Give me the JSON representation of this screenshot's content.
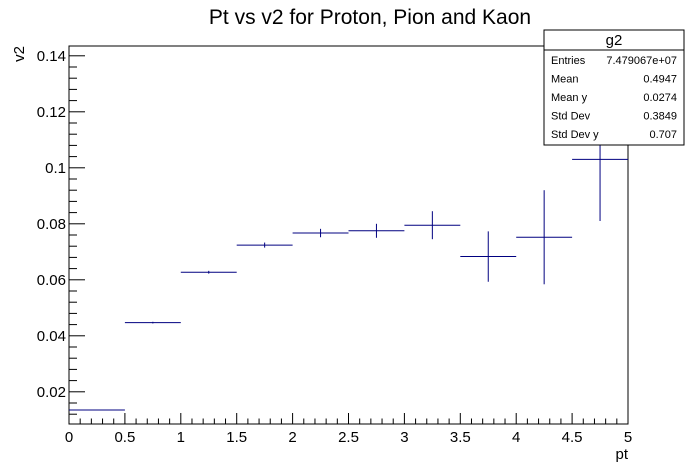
{
  "chart_data": {
    "type": "scatter",
    "title": "Pt vs v2 for Proton, Pion and Kaon",
    "xlabel": "pt",
    "ylabel": "v2",
    "xlim": [
      0,
      5
    ],
    "ylim": [
      0.0085,
      0.1435
    ],
    "x_ticks": [
      0,
      0.5,
      1,
      1.5,
      2,
      2.5,
      3,
      3.5,
      4,
      4.5,
      5
    ],
    "x_tick_labels": [
      "0",
      "0.5",
      "1",
      "1.5",
      "2",
      "2.5",
      "3",
      "3.5",
      "4",
      "4.5",
      "5"
    ],
    "y_ticks": [
      0.02,
      0.04,
      0.06,
      0.08,
      0.1,
      0.12,
      0.14
    ],
    "y_tick_labels": [
      "0.02",
      "0.04",
      "0.06",
      "0.08",
      "0.1",
      "0.12",
      "0.14"
    ],
    "grid": false,
    "color": "#000080",
    "points": [
      {
        "x": 0.25,
        "y": 0.0135,
        "xerr": 0.25,
        "yerr": 0.0
      },
      {
        "x": 0.75,
        "y": 0.0447,
        "xerr": 0.25,
        "yerr": 0.0003
      },
      {
        "x": 1.25,
        "y": 0.0627,
        "xerr": 0.25,
        "yerr": 0.0005
      },
      {
        "x": 1.75,
        "y": 0.0724,
        "xerr": 0.25,
        "yerr": 0.0009
      },
      {
        "x": 2.25,
        "y": 0.0767,
        "xerr": 0.25,
        "yerr": 0.0015
      },
      {
        "x": 2.75,
        "y": 0.0775,
        "xerr": 0.25,
        "yerr": 0.0025
      },
      {
        "x": 3.25,
        "y": 0.0795,
        "xerr": 0.25,
        "yerr": 0.005
      },
      {
        "x": 3.75,
        "y": 0.0683,
        "xerr": 0.25,
        "yerr": 0.009
      },
      {
        "x": 4.25,
        "y": 0.0752,
        "xerr": 0.25,
        "yerr": 0.0168
      },
      {
        "x": 4.75,
        "y": 0.103,
        "xerr": 0.25,
        "yerr": 0.022
      }
    ]
  },
  "stats_box": {
    "name": "g2",
    "rows": [
      {
        "label": "Entries",
        "value": "7.479067e+07"
      },
      {
        "label": "Mean",
        "value": "0.4947"
      },
      {
        "label": "Mean y",
        "value": "0.0274"
      },
      {
        "label": "Std Dev",
        "value": "0.3849"
      },
      {
        "label": "Std Dev y",
        "value": "0.707"
      }
    ]
  }
}
